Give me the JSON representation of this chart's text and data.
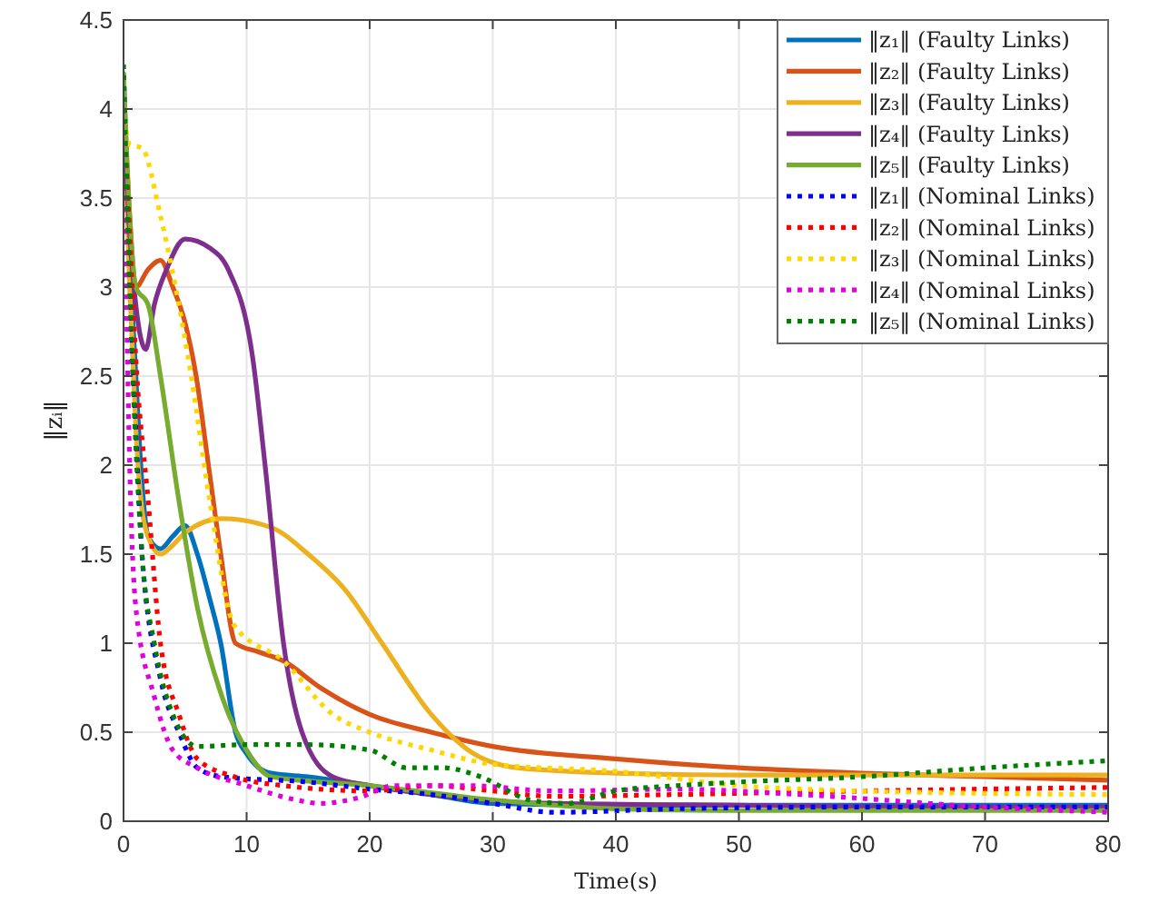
{
  "chart_data": {
    "type": "line",
    "xlabel": "Time(s)",
    "ylabel": "‖zᵢ‖",
    "xlim": [
      0,
      80
    ],
    "ylim": [
      0,
      4.5
    ],
    "xticks": [
      0,
      10,
      20,
      30,
      40,
      50,
      60,
      70,
      80
    ],
    "yticks": [
      0,
      0.5,
      1,
      1.5,
      2,
      2.5,
      3,
      3.5,
      4,
      4.5
    ],
    "grid": true,
    "legend": "top right",
    "marker": "none",
    "series": [
      {
        "name": "‖z₁‖ (Faulty Links)",
        "color": "#0072bd",
        "line_style": "solid",
        "x": [
          0,
          0.5,
          1,
          1.5,
          2,
          3,
          4,
          5,
          6,
          7,
          7.9,
          9.1,
          10,
          11,
          12,
          15,
          20,
          25,
          30,
          40,
          50,
          60,
          70,
          80
        ],
        "values": [
          4.2,
          3.2,
          2.5,
          1.9,
          1.6,
          1.53,
          1.6,
          1.66,
          1.5,
          1.25,
          1.0,
          0.5,
          0.38,
          0.3,
          0.27,
          0.25,
          0.2,
          0.15,
          0.1,
          0.09,
          0.09,
          0.09,
          0.09,
          0.09
        ]
      },
      {
        "name": "‖z₂‖ (Faulty Links)",
        "color": "#d95319",
        "line_style": "solid",
        "x": [
          0,
          0.5,
          1,
          2,
          3,
          4,
          5,
          5.9,
          6.9,
          7.9,
          9.1,
          11,
          13,
          16,
          20,
          25,
          30,
          40,
          50,
          60,
          70,
          80
        ],
        "values": [
          4.1,
          3.4,
          3.0,
          3.1,
          3.15,
          3.0,
          2.8,
          2.5,
          2.0,
          1.5,
          1.0,
          0.95,
          0.9,
          0.75,
          0.6,
          0.5,
          0.42,
          0.35,
          0.3,
          0.27,
          0.25,
          0.23
        ]
      },
      {
        "name": "‖z₃‖ (Faulty Links)",
        "color": "#edb120",
        "line_style": "solid",
        "x": [
          0,
          0.5,
          1,
          1.5,
          2,
          3,
          4,
          5,
          8,
          12,
          15,
          18,
          21,
          25,
          28,
          32,
          40,
          50,
          60,
          70,
          80
        ],
        "values": [
          4.0,
          3.0,
          2.2,
          1.75,
          1.6,
          1.5,
          1.55,
          1.62,
          1.7,
          1.65,
          1.5,
          1.3,
          1.0,
          0.6,
          0.4,
          0.3,
          0.27,
          0.26,
          0.26,
          0.26,
          0.26
        ]
      },
      {
        "name": "‖z₄‖ (Faulty Links)",
        "color": "#7e2f8e",
        "line_style": "solid",
        "x": [
          0,
          0.5,
          1,
          1.8,
          2.5,
          3.5,
          5,
          7,
          8.5,
          10.5,
          11.5,
          13,
          14.5,
          17,
          20,
          25,
          35,
          50,
          65,
          80
        ],
        "values": [
          4.0,
          3.3,
          2.9,
          2.65,
          2.9,
          3.1,
          3.27,
          3.22,
          3.1,
          2.6,
          2.0,
          1.0,
          0.5,
          0.25,
          0.2,
          0.15,
          0.1,
          0.09,
          0.08,
          0.08
        ]
      },
      {
        "name": "‖z₅‖ (Faulty Links)",
        "color": "#77ac30",
        "line_style": "solid",
        "x": [
          0,
          0.5,
          1,
          2,
          3,
          4.5,
          6,
          8,
          10,
          12,
          20,
          30,
          40,
          50,
          60,
          70,
          80
        ],
        "values": [
          4.2,
          3.4,
          3.0,
          2.9,
          2.5,
          1.8,
          1.2,
          0.7,
          0.4,
          0.25,
          0.2,
          0.12,
          0.07,
          0.06,
          0.06,
          0.06,
          0.06
        ]
      },
      {
        "name": "‖z₁‖ (Nominal Links)",
        "color": "#0000ff",
        "line_style": "dotted",
        "x": [
          0,
          0.5,
          1,
          1.5,
          3,
          4.5,
          6,
          8,
          15,
          20,
          25,
          30,
          35,
          45,
          60,
          80
        ],
        "values": [
          4.0,
          3.0,
          2.2,
          1.5,
          0.8,
          0.5,
          0.3,
          0.25,
          0.22,
          0.18,
          0.15,
          0.1,
          0.05,
          0.07,
          0.08,
          0.08
        ]
      },
      {
        "name": "‖z₂‖ (Nominal Links)",
        "color": "#ff0000",
        "line_style": "dotted",
        "x": [
          0,
          0.5,
          1,
          2,
          3,
          4.5,
          6,
          9,
          13,
          20,
          25,
          30,
          35,
          45,
          60,
          80
        ],
        "values": [
          4.0,
          3.3,
          2.6,
          1.8,
          1.0,
          0.6,
          0.35,
          0.25,
          0.2,
          0.17,
          0.2,
          0.17,
          0.14,
          0.15,
          0.17,
          0.19
        ]
      },
      {
        "name": "‖z₃‖ (Nominal Links)",
        "color": "#ffd700",
        "line_style": "dotted",
        "x": [
          0,
          0.5,
          1.5,
          3,
          5.5,
          7,
          9,
          13,
          17,
          20,
          25,
          30,
          40,
          50,
          60,
          80
        ],
        "values": [
          4.0,
          3.8,
          3.78,
          3.4,
          2.5,
          1.8,
          1.1,
          0.9,
          0.6,
          0.5,
          0.4,
          0.32,
          0.28,
          0.2,
          0.17,
          0.15
        ]
      },
      {
        "name": "‖z₄‖ (Nominal Links)",
        "color": "#e000e0",
        "line_style": "dotted",
        "x": [
          0,
          0.5,
          1,
          2.5,
          4,
          6,
          10,
          14,
          16,
          19,
          22,
          28,
          35,
          45,
          55,
          70,
          80
        ],
        "values": [
          4.0,
          2.0,
          1.2,
          0.7,
          0.4,
          0.3,
          0.2,
          0.12,
          0.1,
          0.13,
          0.2,
          0.2,
          0.17,
          0.18,
          0.15,
          0.08,
          0.05
        ]
      },
      {
        "name": "‖z₅‖ (Nominal Links)",
        "color": "#008000",
        "line_style": "dotted",
        "x": [
          0,
          0.5,
          1.5,
          2.5,
          4,
          6,
          10,
          15,
          20,
          23,
          26,
          29,
          33,
          36,
          40,
          45,
          50,
          60,
          70,
          80
        ],
        "values": [
          4.25,
          3.0,
          1.5,
          1.0,
          0.6,
          0.42,
          0.43,
          0.43,
          0.4,
          0.3,
          0.3,
          0.25,
          0.12,
          0.1,
          0.17,
          0.2,
          0.22,
          0.25,
          0.3,
          0.34
        ]
      }
    ]
  }
}
